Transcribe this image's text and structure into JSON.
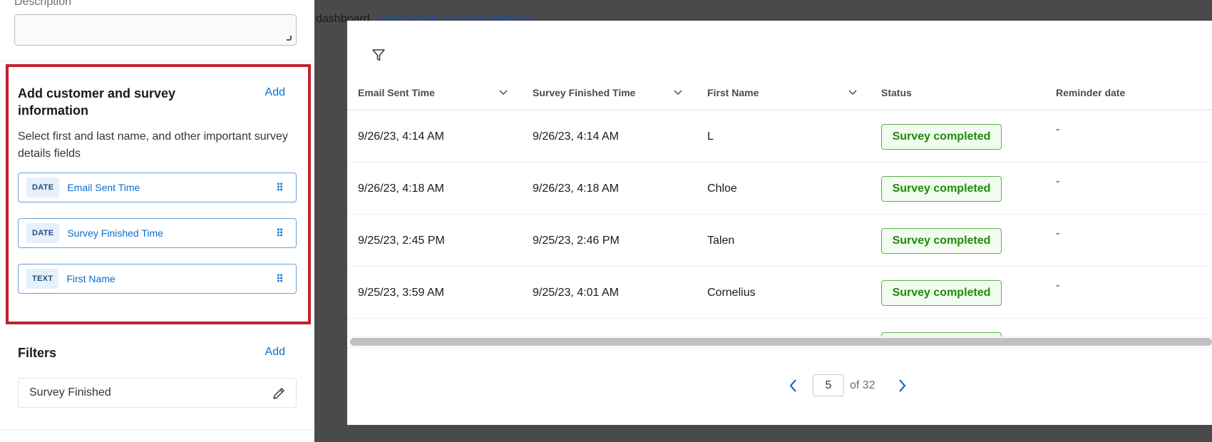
{
  "sidebar": {
    "description_label": "Description",
    "description_value": "",
    "customer_section": {
      "title": "Add customer and survey information",
      "add_label": "Add",
      "description": "Select first and last name, and other important survey details fields",
      "fields": [
        {
          "type": "DATE",
          "label": "Email Sent Time"
        },
        {
          "type": "DATE",
          "label": "Survey Finished Time"
        },
        {
          "type": "TEXT",
          "label": "First Name"
        }
      ]
    },
    "filters": {
      "title": "Filters",
      "add_label": "Add",
      "items": [
        {
          "label": "Survey Finished"
        }
      ]
    }
  },
  "banner": {
    "text": "dashboard.",
    "link": "Switch back or Leave feedback"
  },
  "table": {
    "columns": [
      "Email Sent Time",
      "Survey Finished Time",
      "First Name",
      "Status",
      "Reminder date"
    ],
    "rows": [
      {
        "email_sent": "9/26/23, 4:14 AM",
        "survey_finished": "9/26/23, 4:14 AM",
        "first_name": "L",
        "status": "Survey completed",
        "reminder": "-"
      },
      {
        "email_sent": "9/26/23, 4:18 AM",
        "survey_finished": "9/26/23, 4:18 AM",
        "first_name": "Chloe",
        "status": "Survey completed",
        "reminder": "-"
      },
      {
        "email_sent": "9/25/23, 2:45 PM",
        "survey_finished": "9/25/23, 2:46 PM",
        "first_name": "Talen",
        "status": "Survey completed",
        "reminder": "-"
      },
      {
        "email_sent": "9/25/23, 3:59 AM",
        "survey_finished": "9/25/23, 4:01 AM",
        "first_name": "Cornelius",
        "status": "Survey completed",
        "reminder": "-"
      }
    ]
  },
  "pagination": {
    "current_page": "5",
    "of_label": "of 32"
  },
  "colors": {
    "accent": "#0b6ed0",
    "highlight": "#c4202e",
    "success": "#1f8a0a"
  }
}
